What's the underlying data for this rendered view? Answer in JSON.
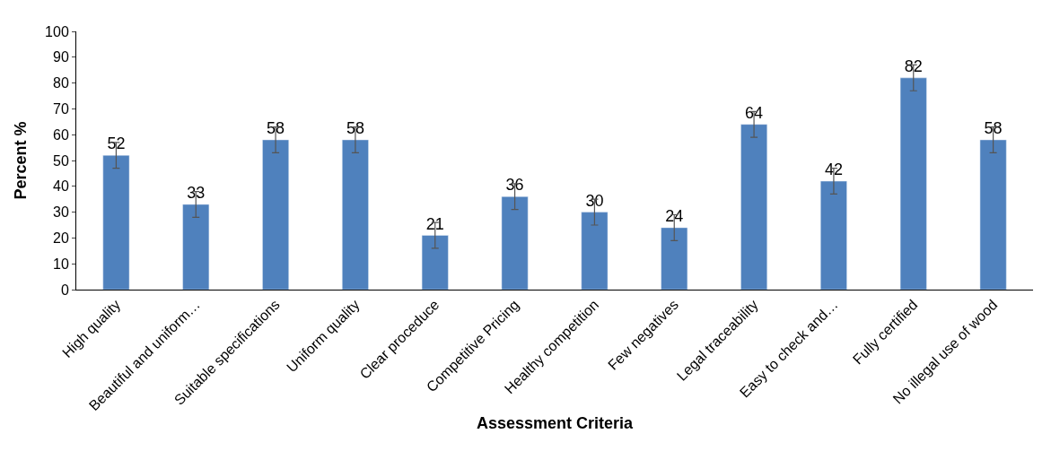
{
  "chart_data": {
    "type": "bar",
    "xlabel": "Assessment Criteria",
    "ylabel": "Percent %",
    "categories": [
      "High quality",
      "Beautiful and uniform…",
      "Suitable specifications",
      "Uniform quality",
      "Clear proceduce",
      "Competitive Pricing",
      "Healthy competition",
      "Few negatives",
      "Legal traceability",
      "Easy to check and…",
      "Fully certified",
      "No illegal use of wood"
    ],
    "values": [
      52,
      33,
      58,
      58,
      21,
      36,
      30,
      24,
      64,
      42,
      82,
      58
    ],
    "errors": [
      5,
      5,
      5,
      5,
      5,
      5,
      5,
      5,
      5,
      5,
      5,
      5
    ],
    "color": "#4f81bd",
    "data_labels": true,
    "ylim": [
      0,
      100
    ],
    "yticks": [
      0,
      10,
      20,
      30,
      40,
      50,
      60,
      70,
      80,
      90,
      100
    ]
  }
}
